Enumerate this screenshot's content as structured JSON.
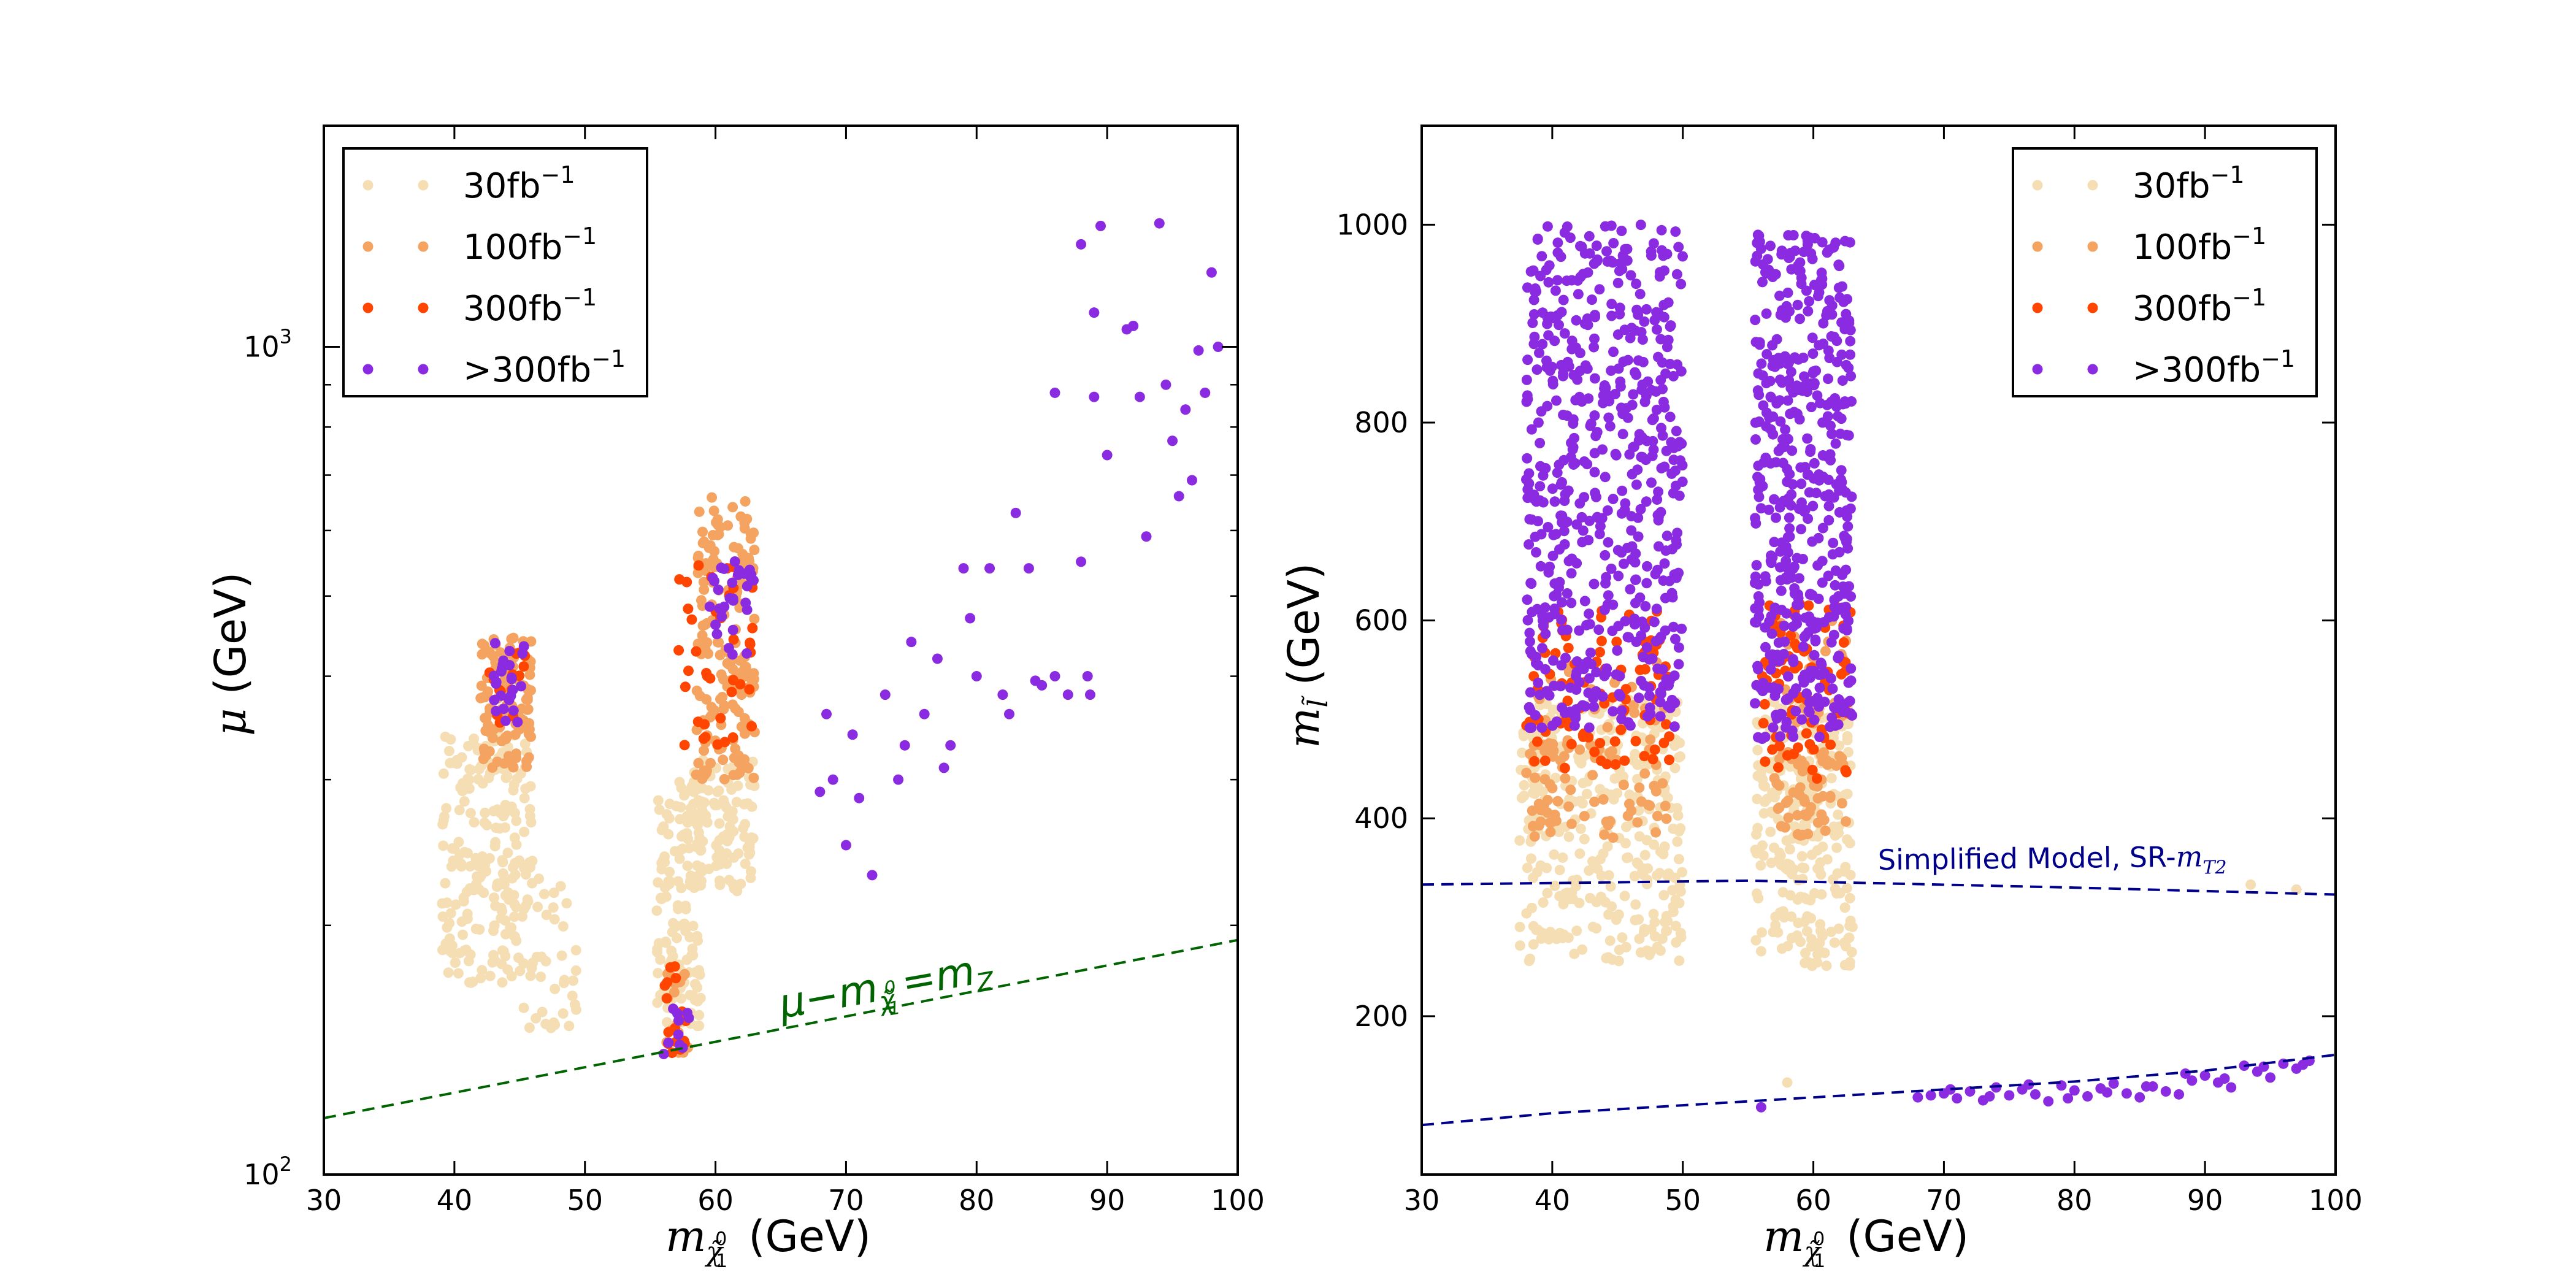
{
  "chart_data": [
    {
      "type": "scatter",
      "title": "",
      "xlabel": {
        "prefix": "m",
        "sub": "χ̃",
        "subsup": "0",
        "subsub": "1",
        "unit": "(GeV)"
      },
      "ylabel": {
        "prefix": "μ",
        "unit": "(GeV)"
      },
      "xlim": [
        30,
        100
      ],
      "ylim": [
        100,
        1850
      ],
      "yscale": "log",
      "xticks": [
        "30",
        "40",
        "50",
        "60",
        "70",
        "80",
        "90",
        "100"
      ],
      "yticks": [
        {
          "base": "10",
          "exp": "2"
        },
        {
          "base": "10",
          "exp": "3"
        }
      ],
      "legend": {
        "position": "top-left",
        "entries": [
          {
            "label": "30fb",
            "exp": "−1",
            "color": "#f5deb3"
          },
          {
            "label": "100fb",
            "exp": "−1",
            "color": "#f4a460"
          },
          {
            "label": "300fb",
            "exp": "−1",
            "color": "#ff4500"
          },
          {
            "label": ">300fb",
            "exp": "−1",
            "color": "#8a2be2"
          }
        ]
      },
      "reference_line": {
        "label_parts": [
          "μ",
          "−",
          "m",
          "χ̃",
          "0",
          "1",
          "=",
          "m",
          "Z"
        ],
        "style": "dashed",
        "color": "#006400",
        "points": [
          [
            30,
            117
          ],
          [
            100,
            192
          ]
        ]
      },
      "clusters": [
        {
          "name": "30fb-1",
          "color": "#f5deb3",
          "regions": [
            {
              "x": [
                39,
                46
              ],
              "y": [
                170,
                340
              ],
              "n": 220
            },
            {
              "x": [
                45,
                49.5
              ],
              "y": [
                150,
                230
              ],
              "n": 40
            },
            {
              "x": [
                55.5,
                59
              ],
              "y": [
                150,
                300
              ],
              "n": 130
            },
            {
              "x": [
                58,
                63
              ],
              "y": [
                220,
                320
              ],
              "n": 110
            }
          ]
        },
        {
          "name": "100fb-1",
          "color": "#f4a460",
          "regions": [
            {
              "x": [
                42,
                46
              ],
              "y": [
                310,
                450
              ],
              "n": 110
            },
            {
              "x": [
                58.5,
                63
              ],
              "y": [
                300,
                660
              ],
              "n": 170
            },
            {
              "x": [
                56,
                58
              ],
              "y": [
                140,
                175
              ],
              "n": 20
            }
          ]
        },
        {
          "name": "300fb-1",
          "color": "#ff4500",
          "regions": [
            {
              "x": [
                42.5,
                45.5
              ],
              "y": [
                350,
                430
              ],
              "n": 14
            },
            {
              "x": [
                56,
                58
              ],
              "y": [
                140,
                180
              ],
              "n": 16
            },
            {
              "x": [
                57,
                63
              ],
              "y": [
                330,
                560
              ],
              "n": 40
            }
          ]
        },
        {
          "name": ">300fb-1",
          "color": "#8a2be2",
          "regions": [
            {
              "x": [
                43,
                45.5
              ],
              "y": [
                350,
                440
              ],
              "n": 25
            },
            {
              "x": [
                56,
                58
              ],
              "y": [
                138,
                160
              ],
              "n": 10
            },
            {
              "x": [
                59.5,
                63
              ],
              "y": [
                420,
                560
              ],
              "n": 32
            }
          ]
        }
      ],
      "scatter_points": {
        "color": "#8a2be2",
        "x": [
          68,
          68.5,
          69,
          70,
          70.5,
          71,
          72,
          73,
          74,
          74.5,
          75,
          76,
          77,
          77.5,
          78,
          79,
          79.5,
          80,
          81,
          82,
          82.5,
          83,
          84,
          84.5,
          85,
          86,
          87,
          88,
          88.5,
          88.7,
          89,
          89.5,
          90,
          91.5,
          92,
          92.5,
          93,
          94,
          94.5,
          95,
          95.5,
          96,
          96.5,
          97,
          97.5,
          98,
          98.5,
          86,
          88,
          89
        ],
        "y": [
          290,
          360,
          300,
          250,
          340,
          285,
          230,
          380,
          300,
          330,
          440,
          360,
          420,
          310,
          330,
          540,
          470,
          400,
          540,
          380,
          360,
          630,
          540,
          395,
          390,
          400,
          380,
          550,
          400,
          380,
          1100,
          1400,
          740,
          1050,
          1060,
          870,
          590,
          1410,
          900,
          770,
          660,
          840,
          690,
          990,
          880,
          1230,
          1000,
          880,
          1330,
          870
        ]
      }
    },
    {
      "type": "scatter",
      "title": "",
      "xlabel": {
        "prefix": "m",
        "sub": "χ̃",
        "subsup": "0",
        "subsub": "1",
        "unit": "(GeV)"
      },
      "ylabel": {
        "prefix": "m",
        "sub": "l̃",
        "unit": "(GeV)"
      },
      "xlim": [
        30,
        100
      ],
      "ylim": [
        40,
        1100
      ],
      "yscale": "linear",
      "xticks": [
        "30",
        "40",
        "50",
        "60",
        "70",
        "80",
        "90",
        "100"
      ],
      "yticks": [
        "200",
        "400",
        "600",
        "800",
        "1000"
      ],
      "legend": {
        "position": "top-right",
        "entries": [
          {
            "label": "30fb",
            "exp": "−1",
            "color": "#f5deb3"
          },
          {
            "label": "100fb",
            "exp": "−1",
            "color": "#f4a460"
          },
          {
            "label": "300fb",
            "exp": "−1",
            "color": "#ff4500"
          },
          {
            "label": ">300fb",
            "exp": "−1",
            "color": "#8a2be2"
          }
        ]
      },
      "reference_lines": [
        {
          "label": "Simplified Model, SR-",
          "label_math": "m",
          "label_sub": "T2",
          "style": "dashed",
          "color": "#00008b",
          "points": [
            [
              30,
              333
            ],
            [
              55,
              337
            ],
            [
              63,
              335
            ],
            [
              80,
              330
            ],
            [
              100,
              323
            ]
          ]
        },
        {
          "label": "",
          "style": "dashed",
          "color": "#00008b",
          "points": [
            [
              30,
              90
            ],
            [
              40,
              102
            ],
            [
              50,
              110
            ],
            [
              60,
              118
            ],
            [
              70,
              126
            ],
            [
              80,
              134
            ],
            [
              90,
              145
            ],
            [
              100,
              161
            ]
          ]
        }
      ],
      "clusters": [
        {
          "name": "30fb-1",
          "color": "#f5deb3",
          "regions": [
            {
              "x": [
                37.5,
                50
              ],
              "y": [
                255,
                520
              ],
              "n": 320
            },
            {
              "x": [
                55.5,
                63
              ],
              "y": [
                250,
                520
              ],
              "n": 260
            }
          ]
        },
        {
          "name": "100fb-1",
          "color": "#f4a460",
          "regions": [
            {
              "x": [
                38,
                49
              ],
              "y": [
                380,
                480
              ],
              "n": 80
            },
            {
              "x": [
                57,
                62.5
              ],
              "y": [
                380,
                470
              ],
              "n": 60
            },
            {
              "x": [
                38,
                49
              ],
              "y": [
                490,
                560
              ],
              "n": 30
            },
            {
              "x": [
                57,
                62.5
              ],
              "y": [
                490,
                600
              ],
              "n": 30
            }
          ]
        },
        {
          "name": "300fb-1",
          "color": "#ff4500",
          "regions": [
            {
              "x": [
                38,
                49
              ],
              "y": [
                450,
                610
              ],
              "n": 90
            },
            {
              "x": [
                56,
                63
              ],
              "y": [
                440,
                620
              ],
              "n": 80
            }
          ]
        },
        {
          "name": ">300fb-1",
          "color": "#8a2be2",
          "regions": [
            {
              "x": [
                38,
                50
              ],
              "y": [
                490,
                1000
              ],
              "n": 560
            },
            {
              "x": [
                55.5,
                63
              ],
              "y": [
                480,
                990
              ],
              "n": 480
            }
          ]
        }
      ],
      "scatter_points": {
        "color": "#8a2be2",
        "x": [
          56,
          68,
          69,
          70,
          71,
          72,
          73,
          74,
          75,
          76,
          77,
          78,
          79,
          80,
          81,
          82,
          83,
          84,
          85,
          86,
          87,
          88,
          89,
          90,
          91,
          92,
          93,
          94,
          95,
          96,
          97,
          98,
          70.5,
          73.5,
          76.5,
          79.5,
          82.5,
          85.5,
          88.5,
          91.5,
          94.5,
          97.5
        ],
        "y": [
          108,
          118,
          120,
          122,
          117,
          124,
          115,
          128,
          120,
          126,
          121,
          114,
          130,
          125,
          119,
          127,
          132,
          122,
          118,
          129,
          124,
          121,
          135,
          140,
          133,
          128,
          150,
          144,
          138,
          152,
          147,
          155,
          126,
          119,
          131,
          117,
          123,
          129,
          142,
          137,
          149,
          151
        ]
      },
      "isolated_points": {
        "color": "#f5deb3",
        "x": [
          58,
          93.5,
          97
        ],
        "y": [
          133,
          333,
          328
        ]
      }
    }
  ]
}
